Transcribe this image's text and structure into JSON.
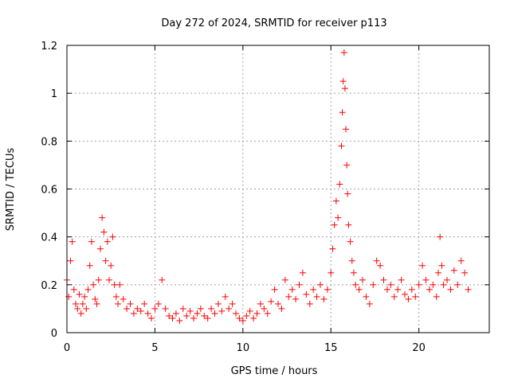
{
  "chart_data": {
    "type": "scatter",
    "title": "Day 272 of 2024, SRMTID for receiver p113",
    "xlabel": "GPS time / hours",
    "ylabel": "SRMTID / TECUs",
    "xlim": [
      0,
      24
    ],
    "ylim": [
      0,
      1.2
    ],
    "x_ticks": [
      0,
      5,
      10,
      15,
      20
    ],
    "x_tick_labels": [
      "0",
      "5",
      "10",
      "15",
      "20"
    ],
    "y_ticks": [
      0,
      0.2,
      0.4,
      0.6,
      0.8,
      1.0,
      1.2
    ],
    "y_tick_labels": [
      "0",
      "0.2",
      "0.4",
      "0.6",
      "0.8",
      "1",
      "1.2"
    ],
    "grid": true,
    "marker": "+",
    "series": [
      {
        "name": "SRMTID",
        "color": "#ff0000",
        "x": [
          0.0,
          0.1,
          0.2,
          0.3,
          0.4,
          0.5,
          0.6,
          0.7,
          0.8,
          0.9,
          1.0,
          1.1,
          1.2,
          1.3,
          1.4,
          1.5,
          1.6,
          1.7,
          1.8,
          1.9,
          2.0,
          2.1,
          2.2,
          2.3,
          2.4,
          2.5,
          2.6,
          2.7,
          2.8,
          2.9,
          3.0,
          3.2,
          3.4,
          3.6,
          3.8,
          4.0,
          4.2,
          4.4,
          4.6,
          4.8,
          5.0,
          5.2,
          5.4,
          5.6,
          5.8,
          6.0,
          6.2,
          6.4,
          6.6,
          6.8,
          7.0,
          7.2,
          7.4,
          7.6,
          7.8,
          8.0,
          8.2,
          8.4,
          8.6,
          8.8,
          9.0,
          9.2,
          9.4,
          9.6,
          9.8,
          10.0,
          10.2,
          10.4,
          10.6,
          10.8,
          11.0,
          11.2,
          11.4,
          11.6,
          11.8,
          12.0,
          12.2,
          12.4,
          12.6,
          12.8,
          13.0,
          13.2,
          13.4,
          13.6,
          13.8,
          14.0,
          14.2,
          14.4,
          14.6,
          14.8,
          15.0,
          15.1,
          15.2,
          15.3,
          15.4,
          15.5,
          15.6,
          15.65,
          15.7,
          15.75,
          15.8,
          15.85,
          15.9,
          15.95,
          16.0,
          16.1,
          16.2,
          16.3,
          16.4,
          16.6,
          16.8,
          17.0,
          17.2,
          17.4,
          17.6,
          17.8,
          18.0,
          18.2,
          18.4,
          18.6,
          18.8,
          19.0,
          19.2,
          19.4,
          19.6,
          19.8,
          20.0,
          20.2,
          20.4,
          20.6,
          20.8,
          21.0,
          21.1,
          21.2,
          21.3,
          21.4,
          21.6,
          21.8,
          22.0,
          22.2,
          22.4,
          22.6,
          22.8
        ],
        "values": [
          0.22,
          0.15,
          0.3,
          0.38,
          0.18,
          0.12,
          0.1,
          0.16,
          0.08,
          0.12,
          0.15,
          0.1,
          0.18,
          0.28,
          0.38,
          0.2,
          0.14,
          0.12,
          0.22,
          0.35,
          0.48,
          0.42,
          0.3,
          0.38,
          0.22,
          0.28,
          0.4,
          0.2,
          0.15,
          0.12,
          0.2,
          0.14,
          0.1,
          0.12,
          0.08,
          0.1,
          0.09,
          0.12,
          0.08,
          0.06,
          0.1,
          0.12,
          0.22,
          0.1,
          0.07,
          0.06,
          0.08,
          0.05,
          0.1,
          0.07,
          0.09,
          0.06,
          0.08,
          0.1,
          0.07,
          0.06,
          0.1,
          0.08,
          0.12,
          0.09,
          0.15,
          0.1,
          0.12,
          0.08,
          0.06,
          0.05,
          0.07,
          0.09,
          0.06,
          0.08,
          0.12,
          0.1,
          0.08,
          0.13,
          0.18,
          0.12,
          0.1,
          0.22,
          0.15,
          0.18,
          0.14,
          0.2,
          0.25,
          0.16,
          0.12,
          0.18,
          0.15,
          0.2,
          0.14,
          0.18,
          0.25,
          0.35,
          0.45,
          0.55,
          0.48,
          0.62,
          0.78,
          0.92,
          1.05,
          1.17,
          1.02,
          0.85,
          0.7,
          0.58,
          0.45,
          0.38,
          0.3,
          0.25,
          0.2,
          0.18,
          0.22,
          0.15,
          0.12,
          0.2,
          0.3,
          0.28,
          0.22,
          0.18,
          0.2,
          0.15,
          0.18,
          0.22,
          0.16,
          0.14,
          0.18,
          0.15,
          0.2,
          0.28,
          0.22,
          0.18,
          0.2,
          0.15,
          0.25,
          0.4,
          0.28,
          0.2,
          0.22,
          0.18,
          0.26,
          0.2,
          0.3,
          0.25,
          0.18
        ]
      }
    ]
  }
}
